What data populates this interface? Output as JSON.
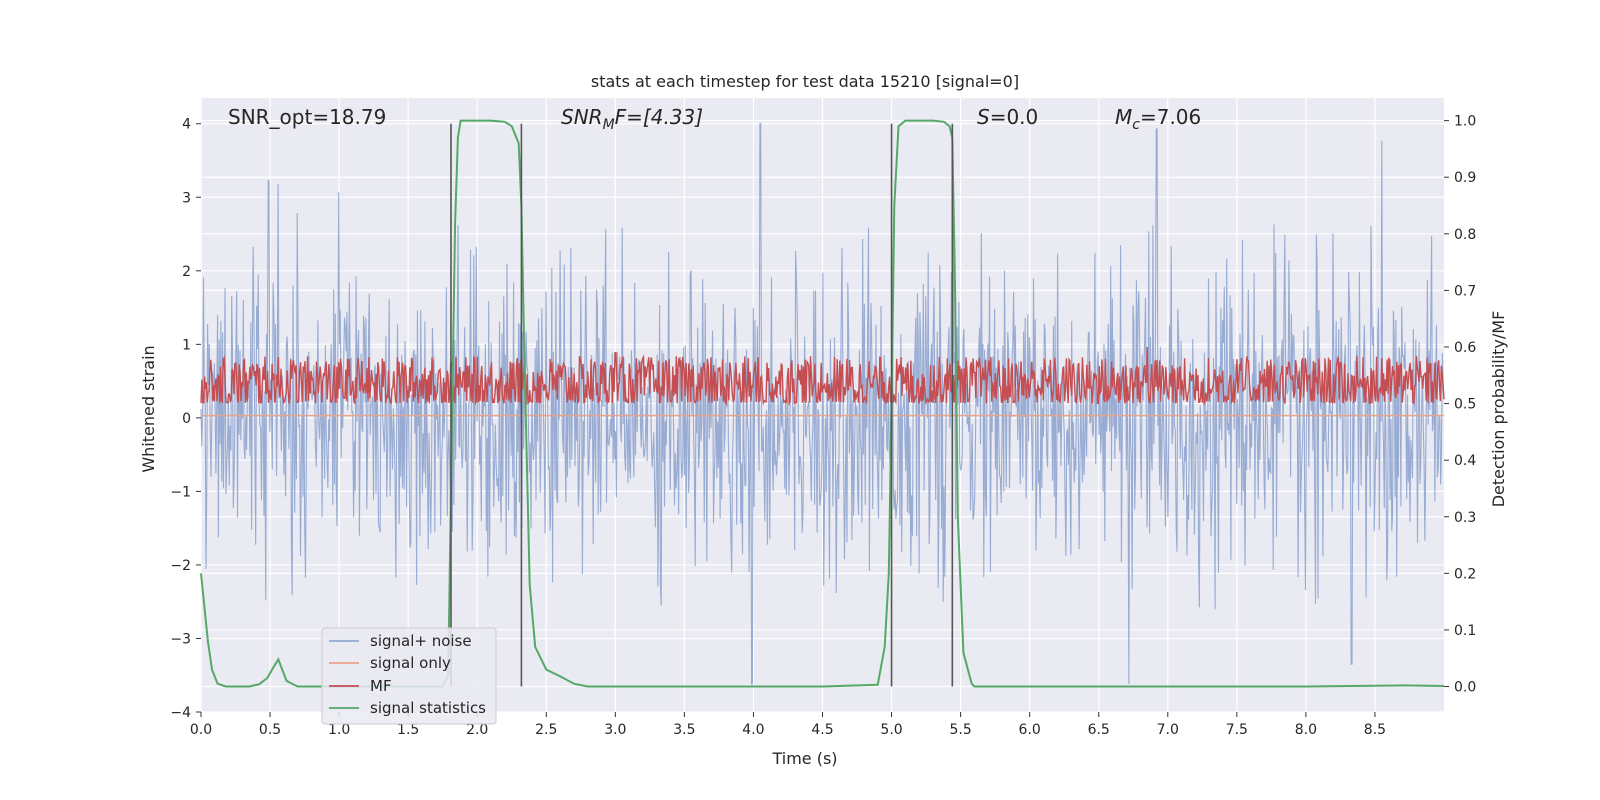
{
  "chart_data": {
    "type": "line",
    "title": "stats at each timestep for test data 15210 [signal=0]",
    "xlabel": "Time (s)",
    "ylabel": "Whitened strain",
    "ylabel_right": "Detection probability/MF",
    "xlim": [
      0.0,
      9.0
    ],
    "ylim": [
      -4,
      4.35
    ],
    "ylim_right": [
      -0.045,
      1.04
    ],
    "x_ticks": [
      "0.0",
      "0.5",
      "1.0",
      "1.5",
      "2.0",
      "2.5",
      "3.0",
      "3.5",
      "4.0",
      "4.5",
      "5.0",
      "5.5",
      "6.0",
      "6.5",
      "7.0",
      "7.5",
      "8.0",
      "8.5"
    ],
    "y_ticks": [
      "4",
      "3",
      "2",
      "1",
      "0",
      "−1",
      "−2",
      "−3",
      "−4"
    ],
    "y_ticks_right": [
      "1.0",
      "0.9",
      "0.8",
      "0.7",
      "0.6",
      "0.5",
      "0.4",
      "0.3",
      "0.2",
      "0.1",
      "0.0"
    ],
    "grid": true,
    "legend_position": "lower-left",
    "annotations": {
      "snr_opt": "SNR_opt=18.79",
      "snr_mf_main": "SNR",
      "snr_mf_sub": "M",
      "snr_mf_rest": "F=[4.33]",
      "s_main": "S",
      "s_rest": "=0.0",
      "mc_main": "M",
      "mc_sub": "c",
      "mc_rest": "=7.06"
    },
    "vertical_markers": [
      1.81,
      2.32,
      5.0,
      5.44
    ],
    "series": [
      {
        "name": "signal+ noise",
        "color": "#92a8d1",
        "axis": "left",
        "description_levels": {
          "typical_envelope": [
            -2.4,
            2.5
          ],
          "peaks": [
            [
              0.49,
              3.23
            ],
            [
              0.56,
              3.18
            ],
            [
              4.05,
              4.0
            ],
            [
              6.92,
              3.93
            ],
            [
              8.55,
              3.77
            ],
            [
              3.99,
              -3.62
            ],
            [
              6.72,
              -3.62
            ],
            [
              8.33,
              -3.35
            ]
          ]
        }
      },
      {
        "name": "signal only",
        "color": "#e8a58a",
        "axis": "left",
        "x": [
          0.0,
          9.0
        ],
        "values": [
          0.03,
          0.03
        ]
      },
      {
        "name": "MF",
        "color": "#c44e52",
        "axis": "right",
        "description_levels": {
          "base": 0.52,
          "amplitude": 0.07,
          "peaks": [
            [
              6.85,
              0.6
            ],
            [
              8.55,
              0.58
            ],
            [
              3.0,
              0.59
            ]
          ]
        }
      },
      {
        "name": "signal statistics",
        "color": "#55a868",
        "axis": "right",
        "x": [
          0.0,
          0.05,
          0.08,
          0.12,
          0.18,
          0.25,
          0.35,
          0.42,
          0.48,
          0.52,
          0.56,
          0.62,
          0.7,
          0.8,
          0.9,
          1.0,
          1.2,
          1.4,
          1.6,
          1.7,
          1.75,
          1.79,
          1.81,
          1.84,
          1.86,
          1.88,
          1.9,
          2.0,
          2.1,
          2.2,
          2.25,
          2.3,
          2.32,
          2.34,
          2.38,
          2.42,
          2.5,
          2.6,
          2.7,
          2.8,
          3.0,
          3.5,
          4.0,
          4.5,
          4.9,
          4.95,
          4.98,
          5.0,
          5.02,
          5.05,
          5.1,
          5.2,
          5.3,
          5.38,
          5.42,
          5.44,
          5.46,
          5.48,
          5.52,
          5.58,
          5.6,
          6.0,
          7.0,
          8.0,
          8.7,
          9.0
        ],
        "values": [
          0.2,
          0.08,
          0.03,
          0.005,
          0.0,
          0.0,
          0.0,
          0.004,
          0.015,
          0.032,
          0.048,
          0.01,
          0.0,
          0.0,
          0.0,
          0.0,
          0.0,
          0.0,
          0.0,
          0.0,
          0.0,
          0.02,
          0.35,
          0.82,
          0.97,
          1.0,
          1.0,
          1.0,
          1.0,
          0.998,
          0.99,
          0.96,
          0.85,
          0.6,
          0.18,
          0.07,
          0.03,
          0.018,
          0.005,
          0.0,
          0.0,
          0.0,
          0.0,
          0.0,
          0.003,
          0.07,
          0.2,
          0.5,
          0.85,
          0.99,
          1.0,
          1.0,
          1.0,
          0.998,
          0.99,
          0.97,
          0.7,
          0.3,
          0.06,
          0.005,
          0.0,
          0.0,
          0.0,
          0.0,
          0.002,
          0.001
        ]
      }
    ]
  }
}
